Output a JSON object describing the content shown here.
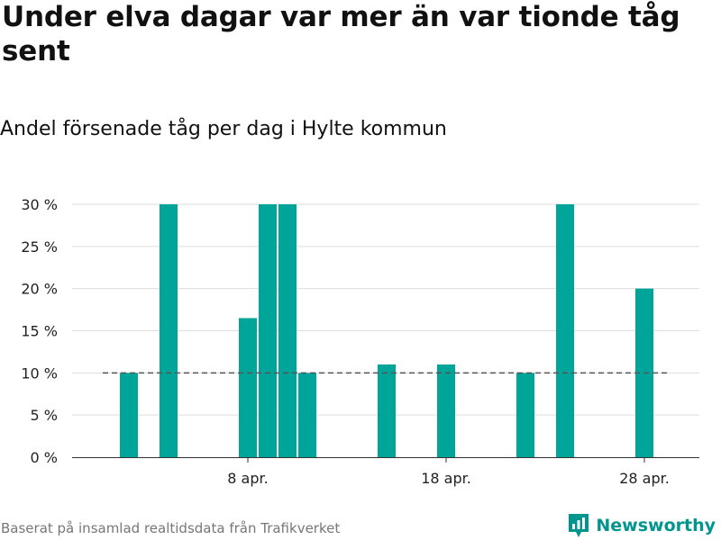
{
  "title": "Under elva dagar var mer än var tionde tåg sent",
  "subtitle": "Andel försenade tåg per dag i Hylte kommun",
  "source": "Baserat på insamlad realtidsdata från Trafikverket",
  "brand": {
    "name": "Newsworthy",
    "icon": "newsworthy-logo-icon"
  },
  "colors": {
    "bar": "#00a59a",
    "reference_line": "#555555",
    "grid": "#dddddd",
    "brand": "#00968f"
  },
  "chart_data": {
    "type": "bar",
    "title": "",
    "xlabel": "",
    "ylabel": "",
    "ylim": [
      0,
      30
    ],
    "y_ticks": [
      "0 %",
      "5 %",
      "10 %",
      "15 %",
      "20 %",
      "25 %",
      "30 %"
    ],
    "x_ticks": [
      "8 apr.",
      "18 apr.",
      "28 apr."
    ],
    "grid": true,
    "legend": "none",
    "reference_line": {
      "value": 10,
      "style": "dashed"
    },
    "series": [
      {
        "values": [
          {
            "date": "2 apr.",
            "value": 10
          },
          {
            "date": "4 apr.",
            "value": 30
          },
          {
            "date": "8 apr.",
            "value": 16.5
          },
          {
            "date": "9 apr.",
            "value": 30
          },
          {
            "date": "10 apr.",
            "value": 30
          },
          {
            "date": "11 apr.",
            "value": 10
          },
          {
            "date": "15 apr.",
            "value": 11
          },
          {
            "date": "18 apr.",
            "value": 11
          },
          {
            "date": "22 apr.",
            "value": 10
          },
          {
            "date": "24 apr.",
            "value": 30
          },
          {
            "date": "28 apr.",
            "value": 20
          }
        ]
      }
    ]
  }
}
